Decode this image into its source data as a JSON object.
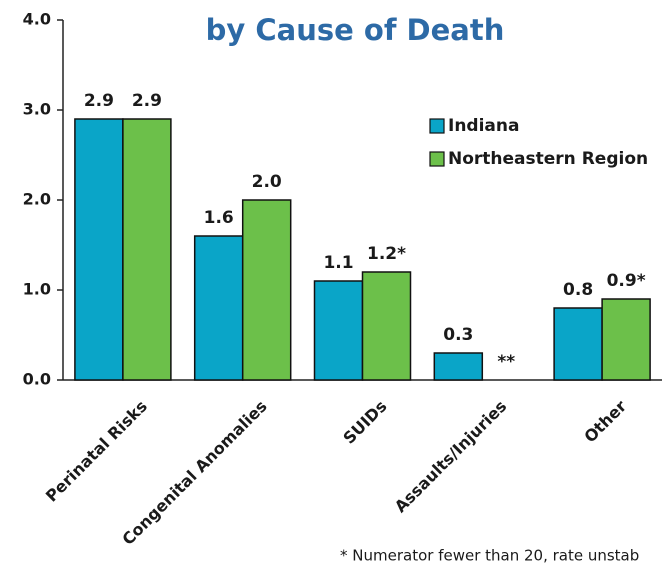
{
  "chart_data": {
    "type": "bar",
    "title": "by Cause of Death",
    "categories": [
      "Perinatal Risks",
      "Congenital Anomalies",
      "SUIDs",
      "Assaults/Injuries",
      "Other"
    ],
    "series": [
      {
        "name": "Indiana",
        "color": "#0aa5c8",
        "values": [
          2.9,
          1.6,
          1.1,
          0.3,
          0.8
        ],
        "value_labels": [
          "2.9",
          "1.6",
          "1.1",
          "0.3",
          "0.8"
        ]
      },
      {
        "name": "Northeastern Region",
        "color": "#6cc04a",
        "values": [
          2.9,
          2.0,
          1.2,
          null,
          0.9
        ],
        "value_labels": [
          "2.9",
          "2.0",
          "1.2*",
          "**",
          "0.9*"
        ]
      }
    ],
    "ylim": [
      0,
      4
    ],
    "yticks": [
      {
        "value": 0,
        "label": "0.0"
      },
      {
        "value": 1,
        "label": "1.0"
      },
      {
        "value": 2,
        "label": "2.0"
      },
      {
        "value": 3,
        "label": "3.0"
      },
      {
        "value": 4,
        "label": "4.0"
      }
    ],
    "legend": "upper right",
    "footnote": "* Numerator fewer than 20, rate unstab"
  }
}
